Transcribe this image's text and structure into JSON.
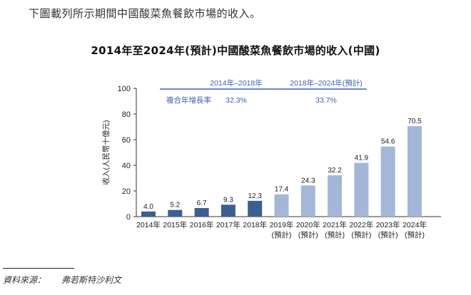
{
  "intro_text": "下圖載列所示期間中國酸菜魚餐飲市場的收入。",
  "chart_data": {
    "type": "bar",
    "title": "2014年至2024年(預計)中國酸菜魚餐飲市場的收入(中國)",
    "ylabel": "收入(人民幣十億元)",
    "ylim": [
      0,
      100
    ],
    "yticks": [
      0,
      20,
      40,
      60,
      80,
      100
    ],
    "categories": [
      [
        "2014年"
      ],
      [
        "2015年"
      ],
      [
        "2016年"
      ],
      [
        "2017年"
      ],
      [
        "2018年"
      ],
      [
        "2019年",
        "(預計)"
      ],
      [
        "2020年",
        "(預計)"
      ],
      [
        "2021年",
        "(預計)"
      ],
      [
        "2022年",
        "(預計)"
      ],
      [
        "2023年",
        "(預計)"
      ],
      [
        "2024年",
        "(預計)"
      ]
    ],
    "values": [
      4.0,
      5.2,
      6.7,
      9.3,
      12.3,
      17.4,
      24.3,
      32.2,
      41.9,
      54.6,
      70.5
    ],
    "value_labels": [
      "4.0",
      "5.2",
      "6.7",
      "9.3",
      "12.3",
      "17.4",
      "24.3",
      "32.2",
      "41.9",
      "54.6",
      "70.5"
    ],
    "colors": {
      "historical": "#3d5f8f",
      "forecast": "#a4b7d8"
    },
    "historical_count": 5,
    "cagr_table": {
      "headers": [
        "2014年–2018年",
        "2018年–2024年(預計)"
      ],
      "row_label": "複合年增長率",
      "values": [
        "32.3%",
        "33.7%"
      ],
      "color": "#3b63b5"
    },
    "grid": false,
    "legend": "none"
  },
  "source": {
    "label": "資料來源：",
    "value": "弗若斯特沙利文"
  }
}
